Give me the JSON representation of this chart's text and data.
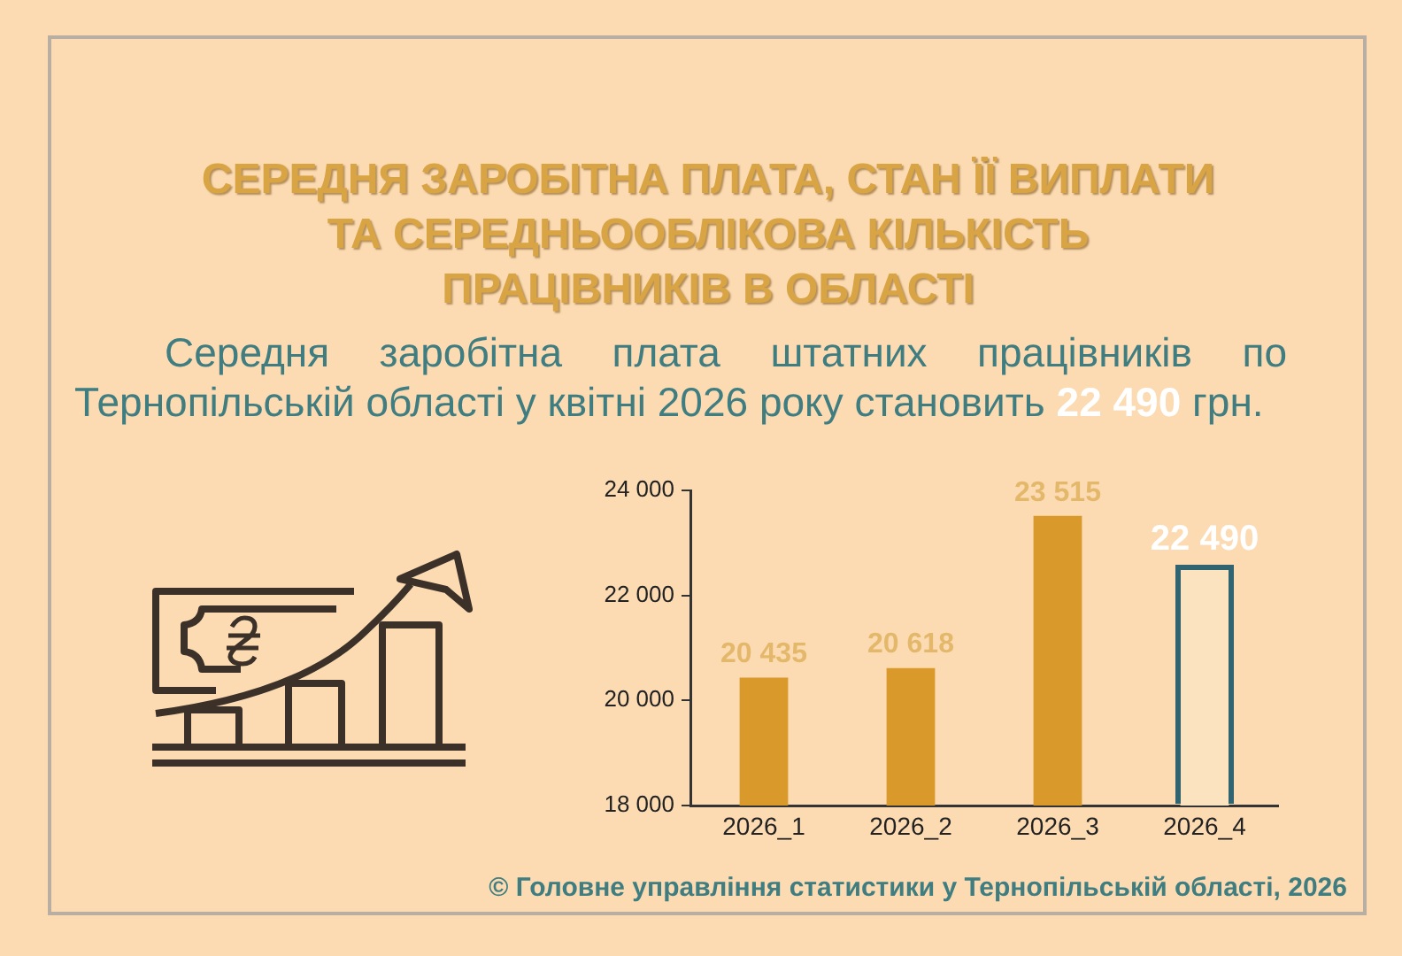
{
  "chart_data": {
    "type": "bar",
    "title": "СЕРЕДНЯ ЗАРОБІТНА ПЛАТА, СТАН ЇЇ ВИПЛАТИ\nТА СЕРЕДНЬООБЛІКОВА КІЛЬКІСТЬ\nПРАЦІВНИКІВ В ОБЛАСТІ",
    "subtitle": "Середня заробітна плата штатних працівників по Тернопільській області у квітні 2026 року становить 22 490 грн.",
    "categories": [
      "2026_1",
      "2026_2",
      "2026_3",
      "2026_4"
    ],
    "values": [
      20435,
      20618,
      23515,
      22490
    ],
    "colors": [
      "#d99a2b",
      "#d99a2b",
      "#d99a2b",
      "#fbe3bf"
    ],
    "value_labels": [
      "20 435",
      "20 618",
      "23 515",
      "22 490"
    ],
    "ylim": [
      18000,
      24000
    ],
    "yticks": [
      {
        "value": 18000,
        "label": "18 000"
      },
      {
        "value": 20000,
        "label": "20 000"
      },
      {
        "value": 22000,
        "label": "22 000"
      },
      {
        "value": 24000,
        "label": "24 000"
      }
    ],
    "grid": false,
    "annotations": [
      "© Головне управління статистики у Тернопільській області, 2026"
    ]
  }
}
